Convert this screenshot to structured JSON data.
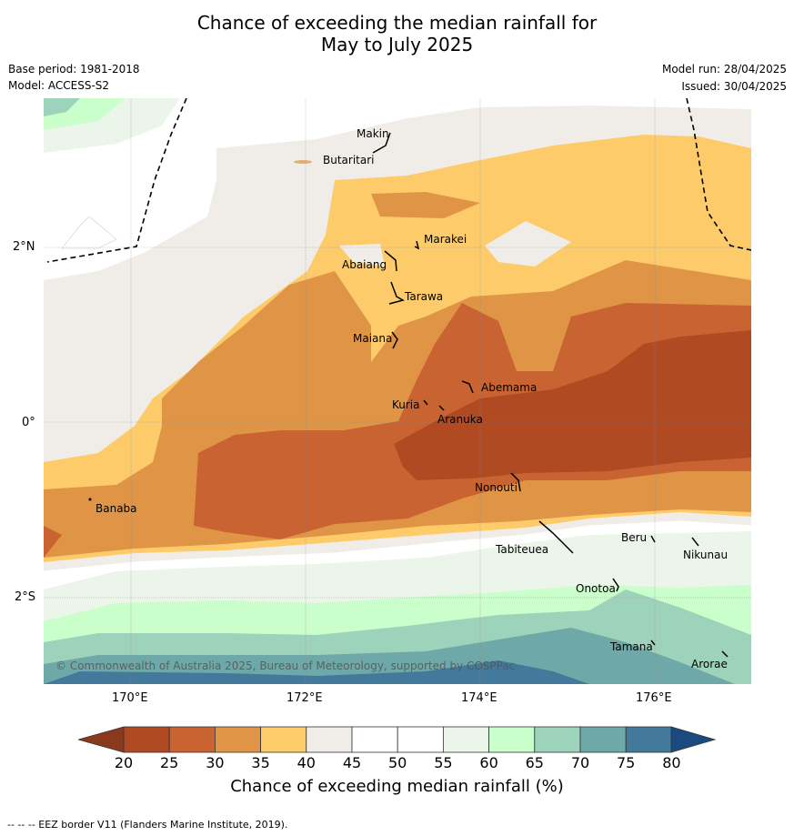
{
  "title_line1": "Chance of exceeding the median rainfall for",
  "title_line2": "May to July 2025",
  "base_period": "Base period: 1981-2018",
  "model": "Model: ACCESS-S2",
  "model_run": "Model run: 28/04/2025",
  "issued": "Issued: 30/04/2025",
  "copyright": "© Commonwealth of Australia 2025, Bureau of Meteorology, supported by COSPPac",
  "footnote": "--  --  -- EEZ border V11 (Flanders Marine Institute, 2019).",
  "lat_labels": [
    "2°N",
    "0°",
    "2°S"
  ],
  "lon_labels": [
    "170°E",
    "172°E",
    "174°E",
    "176°E"
  ],
  "islands": [
    "Makin",
    "Butaritari",
    "Marakei",
    "Abaiang",
    "Tarawa",
    "Maiana",
    "Abemama",
    "Kuria",
    "Aranuka",
    "Banaba",
    "Nonouti",
    "Beru",
    "Tabiteuea",
    "Nikunau",
    "Onotoa",
    "Tamana",
    "Arorae"
  ],
  "colorbar": {
    "ticks": [
      "20",
      "25",
      "30",
      "35",
      "40",
      "45",
      "50",
      "55",
      "60",
      "65",
      "70",
      "75",
      "80"
    ],
    "colors": [
      "#b04a22",
      "#c96432",
      "#e09445",
      "#fdcb6a",
      "#f0ede8",
      "#ffffff",
      "#ffffff",
      "#ebf5ea",
      "#cafecb",
      "#9ed3bb",
      "#6fa8a8",
      "#437a9b"
    ],
    "under_color": "#8a3a1c",
    "over_color": "#1a4a80",
    "label": "Chance of exceeding median rainfall (%)"
  }
}
